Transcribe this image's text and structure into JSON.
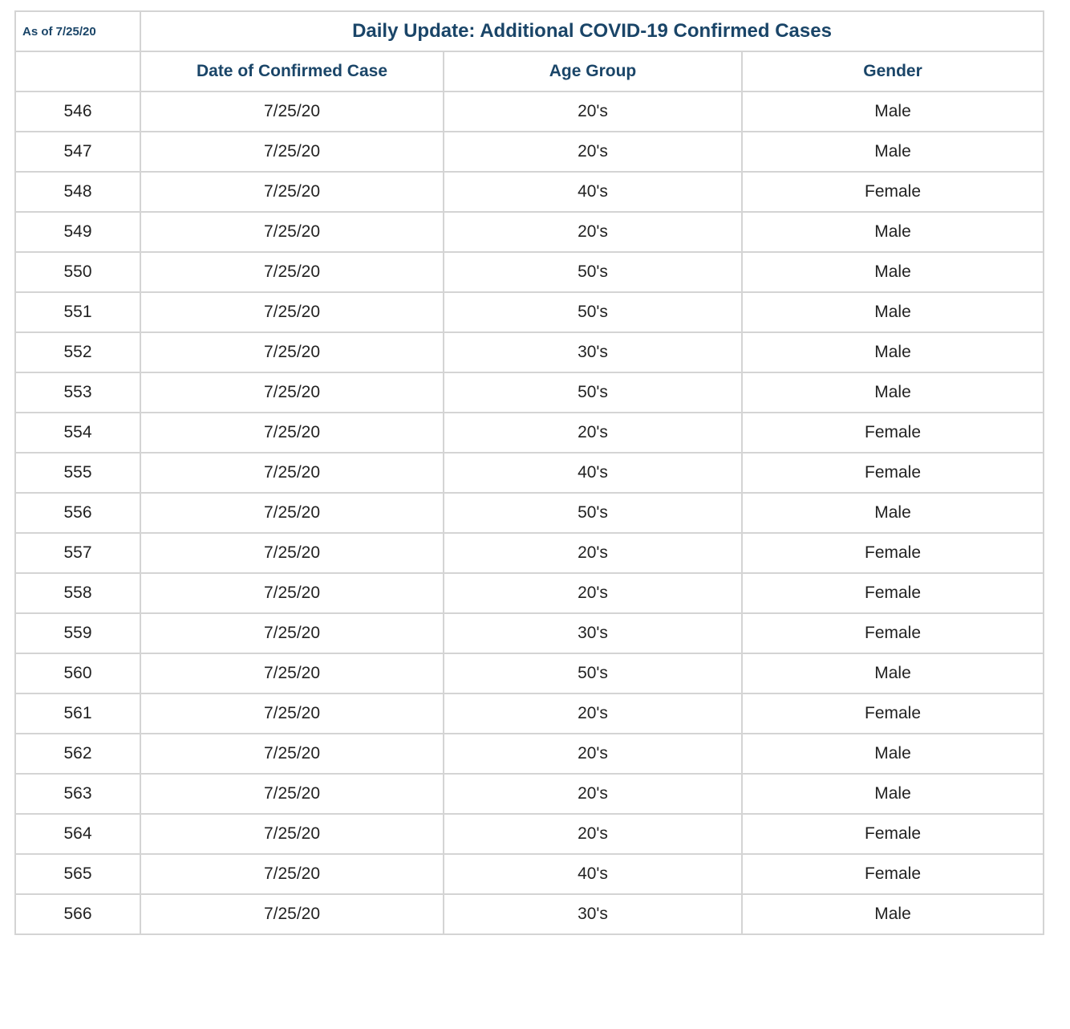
{
  "header": {
    "as_of": "As of 7/25/20",
    "title": "Daily Update: Additional COVID-19 Confirmed Cases"
  },
  "columns": {
    "id": "",
    "date": "Date of Confirmed Case",
    "age": "Age Group",
    "gender": "Gender"
  },
  "rows": [
    {
      "id": "546",
      "date": "7/25/20",
      "age": "20's",
      "gender": "Male"
    },
    {
      "id": "547",
      "date": "7/25/20",
      "age": "20's",
      "gender": "Male"
    },
    {
      "id": "548",
      "date": "7/25/20",
      "age": "40's",
      "gender": "Female"
    },
    {
      "id": "549",
      "date": "7/25/20",
      "age": "20's",
      "gender": "Male"
    },
    {
      "id": "550",
      "date": "7/25/20",
      "age": "50's",
      "gender": "Male"
    },
    {
      "id": "551",
      "date": "7/25/20",
      "age": "50's",
      "gender": "Male"
    },
    {
      "id": "552",
      "date": "7/25/20",
      "age": "30's",
      "gender": "Male"
    },
    {
      "id": "553",
      "date": "7/25/20",
      "age": "50's",
      "gender": "Male"
    },
    {
      "id": "554",
      "date": "7/25/20",
      "age": "20's",
      "gender": "Female"
    },
    {
      "id": "555",
      "date": "7/25/20",
      "age": "40's",
      "gender": "Female"
    },
    {
      "id": "556",
      "date": "7/25/20",
      "age": "50's",
      "gender": "Male"
    },
    {
      "id": "557",
      "date": "7/25/20",
      "age": "20's",
      "gender": "Female"
    },
    {
      "id": "558",
      "date": "7/25/20",
      "age": "20's",
      "gender": "Female"
    },
    {
      "id": "559",
      "date": "7/25/20",
      "age": "30's",
      "gender": "Female"
    },
    {
      "id": "560",
      "date": "7/25/20",
      "age": "50's",
      "gender": "Male"
    },
    {
      "id": "561",
      "date": "7/25/20",
      "age": "20's",
      "gender": "Female"
    },
    {
      "id": "562",
      "date": "7/25/20",
      "age": "20's",
      "gender": "Male"
    },
    {
      "id": "563",
      "date": "7/25/20",
      "age": "20's",
      "gender": "Male"
    },
    {
      "id": "564",
      "date": "7/25/20",
      "age": "20's",
      "gender": "Female"
    },
    {
      "id": "565",
      "date": "7/25/20",
      "age": "40's",
      "gender": "Female"
    },
    {
      "id": "566",
      "date": "7/25/20",
      "age": "30's",
      "gender": "Male"
    }
  ],
  "colors": {
    "heading_text": "#1a4568",
    "body_text": "#222222",
    "border": "#d4d4d4"
  }
}
